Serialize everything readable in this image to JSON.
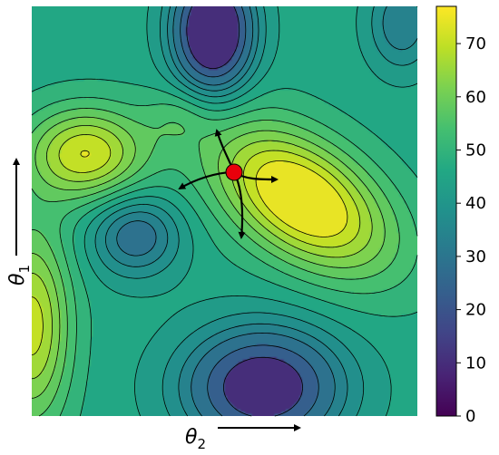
{
  "chart_data": {
    "type": "heatmap",
    "subtype": "contour",
    "title": "",
    "xlabel": "θ",
    "xlabel_sub": "2",
    "ylabel": "θ",
    "ylabel_sub": "1",
    "colormap": "viridis",
    "colorbar": {
      "range": [
        0,
        77
      ],
      "ticks": [
        0,
        10,
        20,
        30,
        40,
        50,
        60,
        70
      ],
      "tick_labels": [
        "0",
        "10",
        "20",
        "30",
        "40",
        "50",
        "60",
        "70"
      ]
    },
    "contour_levels": [
      20,
      26,
      32,
      36,
      40,
      44,
      48,
      52,
      56,
      60,
      64,
      68,
      72
    ],
    "features": [
      {
        "kind": "maximum",
        "value": 74
      },
      {
        "kind": "maximum",
        "value": 70
      },
      {
        "kind": "maximum",
        "value": 66
      },
      {
        "kind": "minimum",
        "value": 3
      },
      {
        "kind": "minimum",
        "value": 12
      },
      {
        "kind": "minimum",
        "value": 28
      }
    ],
    "saddle_point_marker": {
      "color": "#e8000b",
      "arrows": 4
    }
  },
  "colors": {
    "marker": "#e8000b",
    "lines": "#000000",
    "arrows": "#000000"
  }
}
